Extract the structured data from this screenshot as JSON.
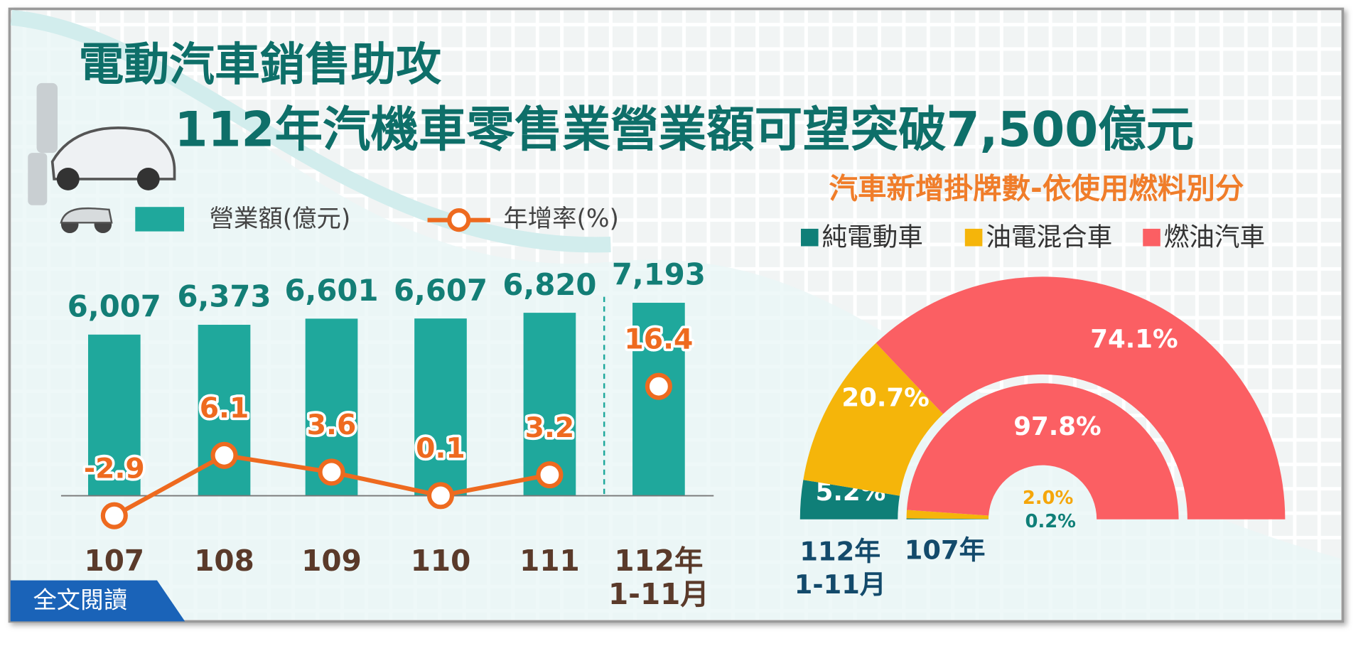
{
  "headline": "電動汽車銷售助攻",
  "title": "112年汽機車零售業營業額可望突破7,500億元",
  "button": "全文閱讀",
  "chart_data": [
    {
      "type": "bar",
      "categories": [
        "107",
        "108",
        "109",
        "110",
        "111",
        "112年\n1-11月"
      ],
      "series": [
        {
          "name": "營業額(億元)",
          "color": "#1fa89c",
          "values": [
            6007,
            6373,
            6601,
            6607,
            6820,
            7193
          ],
          "value_labels": [
            "6,007",
            "6,373",
            "6,601",
            "6,607",
            "6,820",
            "7,193"
          ]
        },
        {
          "name": "年增率(%)",
          "type": "line",
          "axis": "y2",
          "color": "#ee6a1f",
          "values": [
            -2.9,
            6.1,
            3.6,
            0.1,
            3.2,
            16.4
          ],
          "line_break_before": 5
        }
      ],
      "ylim": [
        0,
        8000
      ],
      "y2lim": [
        -5,
        20
      ]
    },
    {
      "type": "semi-donut",
      "title": "汽車新增掛牌數-依使用燃料別分",
      "categories": [
        "純電動車",
        "油電混合車",
        "燃油汽車"
      ],
      "colors": [
        "#0f7f78",
        "#f5b50a",
        "#fb5f63"
      ],
      "rings": [
        {
          "name": "112年\n1-11月",
          "values": [
            5.2,
            20.7,
            74.1
          ],
          "value_labels": [
            "5.2%",
            "20.7%",
            "74.1%"
          ]
        },
        {
          "name": "107年",
          "values": [
            0.2,
            2.0,
            97.8
          ],
          "value_labels": [
            "0.2%",
            "2.0%",
            "97.8%"
          ]
        }
      ]
    }
  ]
}
